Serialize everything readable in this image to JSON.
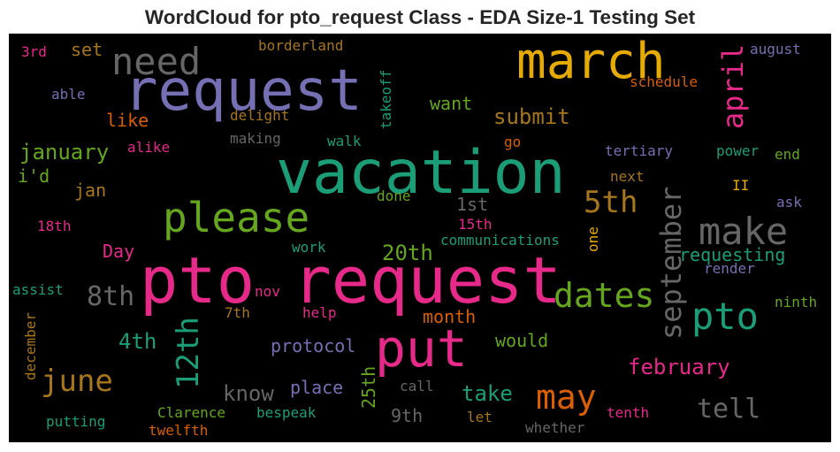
{
  "chart_data": {
    "type": "wordcloud",
    "title": "WordCloud for pto_request Class - EDA Size-1 Testing Set",
    "background": "#000000",
    "words": [
      {
        "text": "pto request",
        "color": "#e7298a",
        "rotated": false
      },
      {
        "text": "vacation",
        "color": "#1b9e77",
        "rotated": false
      },
      {
        "text": "request",
        "color": "#7570b3",
        "rotated": false
      },
      {
        "text": "march",
        "color": "#e6ab02",
        "rotated": false
      },
      {
        "text": "put",
        "color": "#e7298a",
        "rotated": false
      },
      {
        "text": "please",
        "color": "#66a61e",
        "rotated": false
      },
      {
        "text": "pto",
        "color": "#1b9e77",
        "rotated": false
      },
      {
        "text": "make",
        "color": "#666666",
        "rotated": false
      },
      {
        "text": "need",
        "color": "#666666",
        "rotated": false
      },
      {
        "text": "dates",
        "color": "#66a61e",
        "rotated": false
      },
      {
        "text": "may",
        "color": "#d95f02",
        "rotated": false
      },
      {
        "text": "september",
        "color": "#666666",
        "rotated": true
      },
      {
        "text": "april",
        "color": "#e7298a",
        "rotated": true
      },
      {
        "text": "5th",
        "color": "#a6761d",
        "rotated": false
      },
      {
        "text": "12th",
        "color": "#1b9e77",
        "rotated": true
      },
      {
        "text": "june",
        "color": "#a6761d",
        "rotated": false
      },
      {
        "text": "8th",
        "color": "#666666",
        "rotated": false
      },
      {
        "text": "tell",
        "color": "#666666",
        "rotated": false
      },
      {
        "text": "20th",
        "color": "#66a61e",
        "rotated": false
      },
      {
        "text": "february",
        "color": "#e7298a",
        "rotated": false
      },
      {
        "text": "4th",
        "color": "#1b9e77",
        "rotated": false
      },
      {
        "text": "january",
        "color": "#66a61e",
        "rotated": false
      },
      {
        "text": "submit",
        "color": "#a6761d",
        "rotated": false
      },
      {
        "text": "know",
        "color": "#666666",
        "rotated": false
      },
      {
        "text": "take",
        "color": "#1b9e77",
        "rotated": false
      },
      {
        "text": "requesting",
        "color": "#1b9e77",
        "rotated": false
      },
      {
        "text": "month",
        "color": "#d95f02",
        "rotated": false
      },
      {
        "text": "protocol",
        "color": "#7570b3",
        "rotated": false
      },
      {
        "text": "would",
        "color": "#66a61e",
        "rotated": false
      },
      {
        "text": "place",
        "color": "#7570b3",
        "rotated": false
      },
      {
        "text": "25th",
        "color": "#66a61e",
        "rotated": true
      },
      {
        "text": "9th",
        "color": "#666666",
        "rotated": false
      },
      {
        "text": "1st",
        "color": "#666666",
        "rotated": false
      },
      {
        "text": "Day",
        "color": "#e7298a",
        "rotated": false
      },
      {
        "text": "jan",
        "color": "#a6761d",
        "rotated": false
      },
      {
        "text": "i'd",
        "color": "#66a61e",
        "rotated": false
      },
      {
        "text": "like",
        "color": "#d95f02",
        "rotated": false
      },
      {
        "text": "want",
        "color": "#66a61e",
        "rotated": false
      },
      {
        "text": "set",
        "color": "#a6761d",
        "rotated": false
      },
      {
        "text": "borderland",
        "color": "#a6761d",
        "rotated": false
      },
      {
        "text": "3rd",
        "color": "#e7298a",
        "rotated": false
      },
      {
        "text": "able",
        "color": "#7570b3",
        "rotated": false
      },
      {
        "text": "delight",
        "color": "#a6761d",
        "rotated": false
      },
      {
        "text": "takeoff",
        "color": "#1b9e77",
        "rotated": true
      },
      {
        "text": "august",
        "color": "#7570b3",
        "rotated": false
      },
      {
        "text": "schedule",
        "color": "#d95f02",
        "rotated": false
      },
      {
        "text": "making",
        "color": "#666666",
        "rotated": false
      },
      {
        "text": "alike",
        "color": "#e7298a",
        "rotated": false
      },
      {
        "text": "walk",
        "color": "#1b9e77",
        "rotated": false
      },
      {
        "text": "go",
        "color": "#d95f02",
        "rotated": false
      },
      {
        "text": "tertiary",
        "color": "#7570b3",
        "rotated": false
      },
      {
        "text": "power",
        "color": "#1b9e77",
        "rotated": false
      },
      {
        "text": "end",
        "color": "#66a61e",
        "rotated": false
      },
      {
        "text": "next",
        "color": "#a6761d",
        "rotated": false
      },
      {
        "text": "II",
        "color": "#e6ab02",
        "rotated": false
      },
      {
        "text": "done",
        "color": "#66a61e",
        "rotated": false
      },
      {
        "text": "ask",
        "color": "#7570b3",
        "rotated": false
      },
      {
        "text": "18th",
        "color": "#e7298a",
        "rotated": false
      },
      {
        "text": "15th",
        "color": "#e7298a",
        "rotated": false
      },
      {
        "text": "communications",
        "color": "#1b9e77",
        "rotated": false
      },
      {
        "text": "one",
        "color": "#e6ab02",
        "rotated": true
      },
      {
        "text": "work",
        "color": "#1b9e77",
        "rotated": false
      },
      {
        "text": "render",
        "color": "#7570b3",
        "rotated": false
      },
      {
        "text": "assist",
        "color": "#1b9e77",
        "rotated": false
      },
      {
        "text": "nov",
        "color": "#e7298a",
        "rotated": false
      },
      {
        "text": "ninth",
        "color": "#66a61e",
        "rotated": false
      },
      {
        "text": "7th",
        "color": "#a6761d",
        "rotated": false
      },
      {
        "text": "help",
        "color": "#e7298a",
        "rotated": false
      },
      {
        "text": "december",
        "color": "#a6761d",
        "rotated": true
      },
      {
        "text": "call",
        "color": "#666666",
        "rotated": false
      },
      {
        "text": "Clarence",
        "color": "#66a61e",
        "rotated": false
      },
      {
        "text": "bespeak",
        "color": "#1b9e77",
        "rotated": false
      },
      {
        "text": "let",
        "color": "#a6761d",
        "rotated": false
      },
      {
        "text": "tenth",
        "color": "#e7298a",
        "rotated": false
      },
      {
        "text": "putting",
        "color": "#1b9e77",
        "rotated": false
      },
      {
        "text": "twelfth",
        "color": "#d95f02",
        "rotated": false
      },
      {
        "text": "whether",
        "color": "#666666",
        "rotated": false
      }
    ]
  }
}
